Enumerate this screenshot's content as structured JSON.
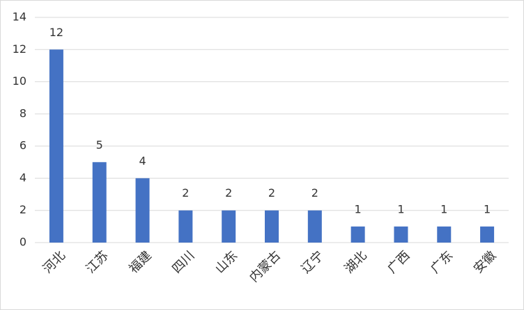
{
  "chart_data": {
    "type": "bar",
    "categories": [
      "河北",
      "江苏",
      "福建",
      "四川",
      "山东",
      "内蒙古",
      "辽宁",
      "湖北",
      "广西",
      "广东",
      "安徽"
    ],
    "values": [
      12,
      5,
      4,
      2,
      2,
      2,
      2,
      1,
      1,
      1,
      1
    ],
    "color": "#4472c4",
    "ylim": [
      0,
      14
    ],
    "yticks": [
      0,
      2,
      4,
      6,
      8,
      10,
      12,
      14
    ],
    "grid": true
  }
}
